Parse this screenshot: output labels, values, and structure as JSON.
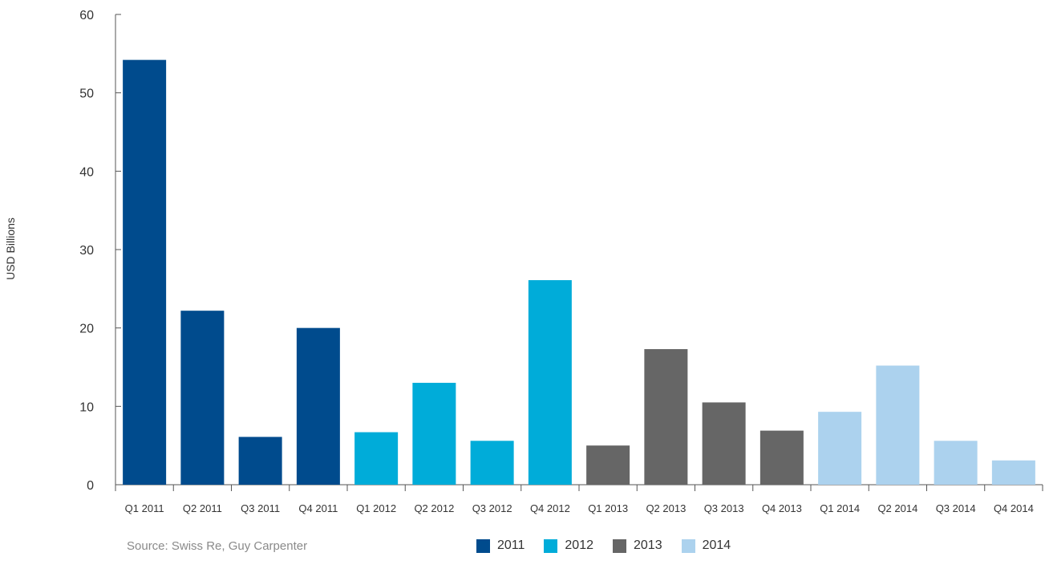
{
  "chart_data": {
    "type": "bar",
    "ylabel": "USD Billions",
    "ylim": [
      0,
      60
    ],
    "yticks": [
      "0",
      "10",
      "20",
      "30",
      "40",
      "50",
      "60"
    ],
    "categories": [
      "Q1 2011",
      "Q2 2011",
      "Q3 2011",
      "Q4 2011",
      "Q1 2012",
      "Q2 2012",
      "Q3 2012",
      "Q4 2012",
      "Q1 2013",
      "Q2 2013",
      "Q3 2013",
      "Q4 2013",
      "Q1 2014",
      "Q2 2014",
      "Q3 2014",
      "Q4 2014"
    ],
    "values": [
      54.2,
      22.2,
      6.1,
      20.0,
      6.7,
      13.0,
      5.6,
      26.1,
      5.0,
      17.3,
      10.5,
      6.9,
      9.3,
      15.2,
      5.6,
      3.1
    ],
    "category_year": [
      "2011",
      "2011",
      "2011",
      "2011",
      "2012",
      "2012",
      "2012",
      "2012",
      "2013",
      "2013",
      "2013",
      "2013",
      "2014",
      "2014",
      "2014",
      "2014"
    ],
    "series": [
      {
        "name": "2011",
        "color": "#004b8d"
      },
      {
        "name": "2012",
        "color": "#00acd9"
      },
      {
        "name": "2013",
        "color": "#666666"
      },
      {
        "name": "2014",
        "color": "#acd2ee"
      }
    ],
    "grid": false,
    "legend_position": "bottom-center"
  },
  "source_note": "Source: Swiss Re, Guy Carpenter"
}
